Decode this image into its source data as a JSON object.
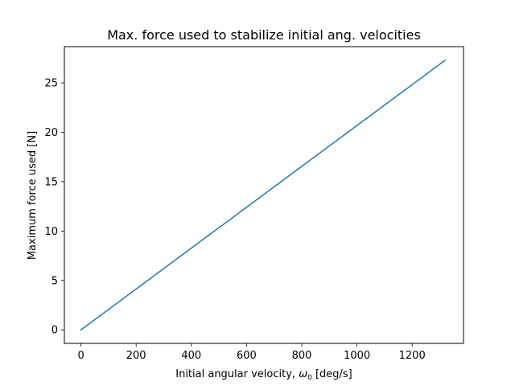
{
  "chart_data": {
    "type": "line",
    "title": "Max. force used to stabilize initial ang. velocities",
    "xlabel": {
      "prefix": "Initial angular velocity, ",
      "symbol": "ω",
      "subscript": "0",
      "suffix": " [deg/s]"
    },
    "ylabel": "Maximum force used [N]",
    "xlim": [
      -60,
      1386
    ],
    "ylim": [
      -1.365,
      28.665
    ],
    "xticks": [
      0,
      200,
      400,
      600,
      800,
      1000,
      1200
    ],
    "yticks": [
      0,
      5,
      10,
      15,
      20,
      25
    ],
    "grid": false,
    "series": [
      {
        "color": "#1f77b4",
        "x": [
          0,
          1320
        ],
        "y": [
          0,
          27.3
        ]
      }
    ]
  }
}
